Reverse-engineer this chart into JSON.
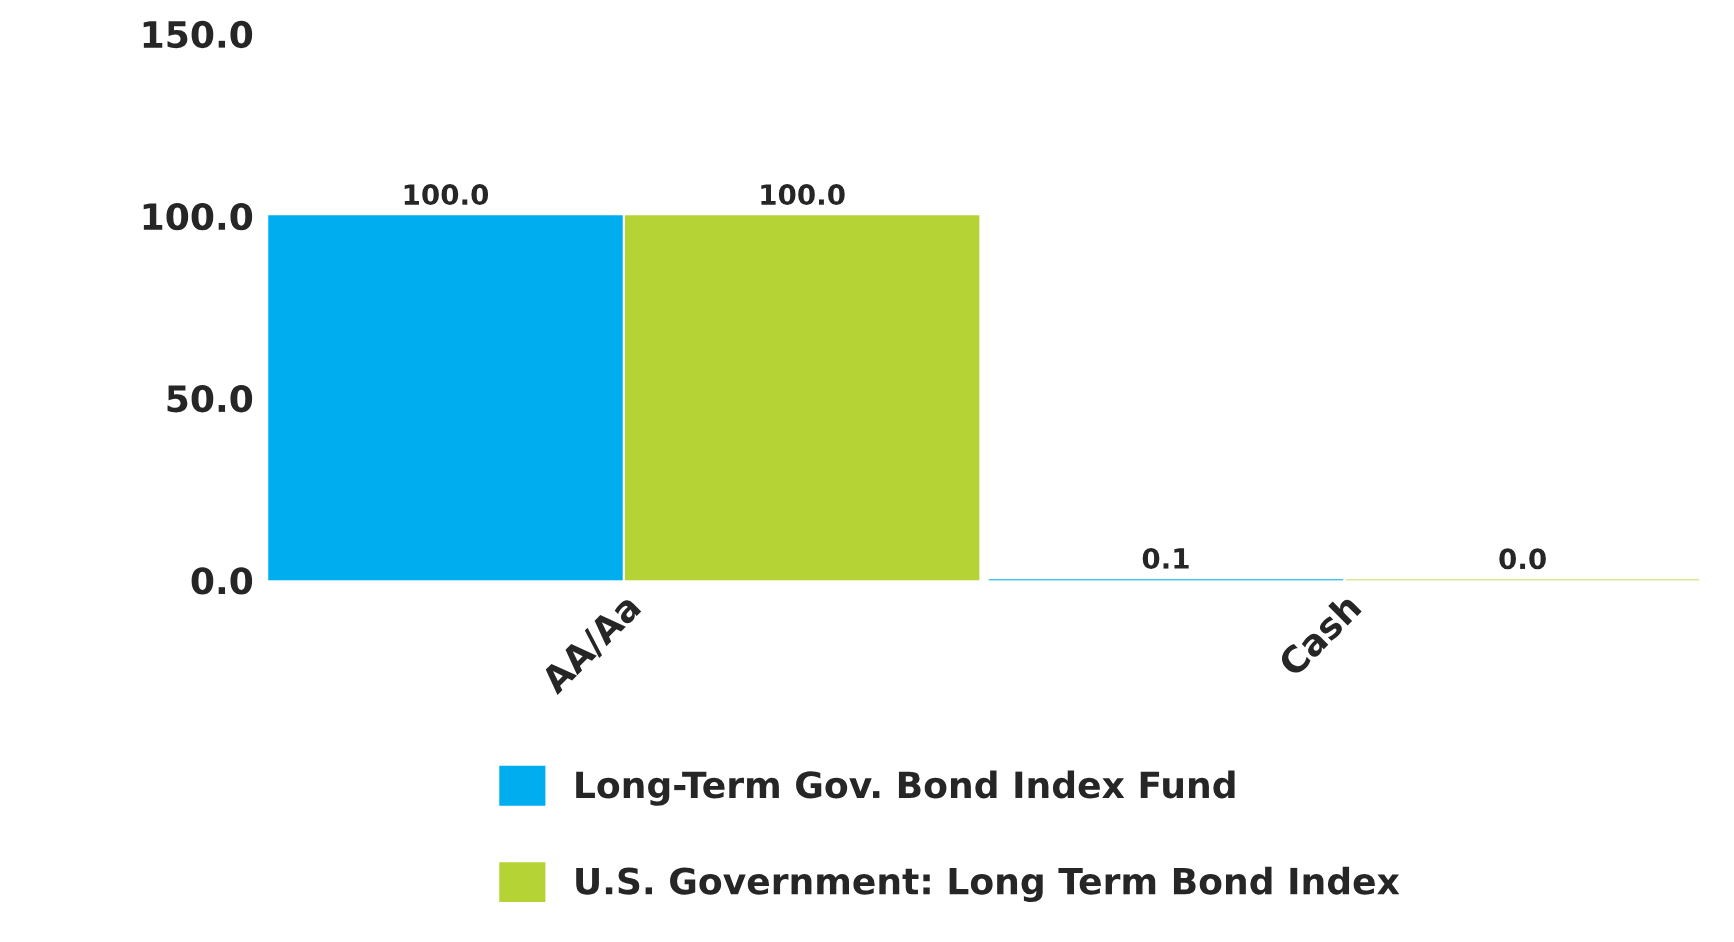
{
  "chart_data": {
    "type": "bar",
    "categories": [
      "AA/Aa",
      "Cash"
    ],
    "series": [
      {
        "name": "Long-Term Gov. Bond Index Fund",
        "color": "#00aeef",
        "values": [
          100.0,
          0.1
        ],
        "value_labels": [
          "100.0",
          "0.1"
        ]
      },
      {
        "name": "U.S. Government: Long Term Bond Index",
        "color": "#b5d334",
        "values": [
          100.0,
          0.0
        ],
        "value_labels": [
          "100.0",
          "0.0"
        ]
      }
    ],
    "ylim": [
      0,
      150
    ],
    "yticks": [
      {
        "value": 0,
        "label": "0.0"
      },
      {
        "value": 50,
        "label": "50.0"
      },
      {
        "value": 100,
        "label": "100.0"
      },
      {
        "value": 150,
        "label": "150.0"
      }
    ],
    "grid": false,
    "legend": "bottom"
  }
}
